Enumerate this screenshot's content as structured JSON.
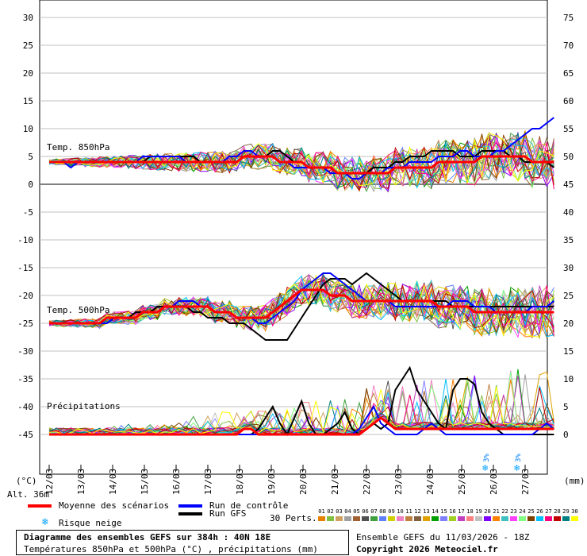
{
  "chart_data": {
    "type": "line",
    "x": [
      "12/03",
      "13/03",
      "14/03",
      "15/03",
      "16/03",
      "17/03",
      "18/03",
      "19/03",
      "20/03",
      "21/03",
      "22/03",
      "23/03",
      "24/03",
      "25/03",
      "26/03",
      "27/03"
    ],
    "left_axis": {
      "label": "(°C)",
      "ticks": [
        30,
        25,
        20,
        15,
        10,
        5,
        0,
        -5,
        -10,
        -15,
        -20,
        -25,
        -30,
        -35,
        -40,
        -45
      ],
      "ylim": [
        -45,
        30
      ]
    },
    "right_axis": {
      "label": "(mm)",
      "ticks": [
        75,
        70,
        65,
        60,
        55,
        50,
        45,
        40,
        35,
        30,
        25,
        20,
        15,
        10,
        5,
        0
      ],
      "ylim": [
        0,
        75
      ]
    },
    "panels": [
      "Temp. 850hPa",
      "Temp. 500hPa",
      "Précipitations"
    ],
    "altitude_label": "Alt. 36m",
    "snow_risk_marks": [
      {
        "date": "26/03",
        "label": "3%"
      },
      {
        "date": "27/03",
        "label": "3%"
      }
    ],
    "series": [
      {
        "name": "Moyenne des scénarios",
        "color": "#ff0000",
        "t850": [
          4,
          4,
          4,
          4,
          4,
          4,
          4,
          4,
          4,
          4,
          4,
          4,
          4,
          4,
          4,
          4,
          4,
          4,
          4,
          4,
          4,
          4,
          4,
          4,
          4,
          4,
          4,
          5,
          5,
          5,
          5,
          5,
          4,
          4,
          4,
          4,
          3,
          3,
          3,
          3,
          2,
          2,
          2,
          2,
          2,
          2,
          2,
          2,
          3,
          3,
          3,
          3,
          3,
          3,
          4,
          4,
          4,
          4,
          4,
          4,
          5,
          5,
          5,
          5,
          5,
          5,
          5,
          4,
          4,
          4,
          4
        ],
        "t500": [
          -25,
          -25,
          -25,
          -25,
          -25,
          -25,
          -25,
          -25,
          -24,
          -24,
          -24,
          -24,
          -24,
          -23,
          -23,
          -23,
          -22,
          -22,
          -22,
          -22,
          -22,
          -22,
          -22,
          -23,
          -23,
          -23,
          -24,
          -24,
          -24,
          -24,
          -24,
          -23,
          -22,
          -21,
          -20,
          -19,
          -19,
          -19,
          -19,
          -20,
          -20,
          -20,
          -21,
          -21,
          -21,
          -21,
          -21,
          -21,
          -21,
          -21,
          -21,
          -21,
          -21,
          -21,
          -22,
          -22,
          -22,
          -22,
          -22,
          -23,
          -23,
          -23,
          -23,
          -23,
          -23,
          -23,
          -23,
          -23,
          -23,
          -23,
          -23
        ],
        "precip": [
          0,
          0,
          0,
          0,
          0,
          0,
          0,
          0,
          0,
          0,
          0,
          0,
          0,
          0,
          0,
          0,
          0,
          0,
          0,
          0,
          0,
          0,
          0,
          0,
          0,
          0,
          0,
          1,
          1,
          0,
          0,
          0,
          0,
          0,
          0,
          0,
          0,
          0,
          0,
          0,
          0,
          0,
          0,
          0,
          1,
          2,
          3,
          2,
          1,
          1,
          1,
          1,
          1,
          1,
          1,
          1,
          1,
          1,
          1,
          1,
          1,
          1,
          1,
          1,
          1,
          1,
          1,
          1,
          1,
          1,
          1
        ]
      },
      {
        "name": "Run de contrôle",
        "color": "#0000ff",
        "t850": [
          4,
          4,
          4,
          3,
          4,
          4,
          4,
          4,
          4,
          4,
          4,
          4,
          4,
          5,
          5,
          5,
          5,
          5,
          5,
          4,
          4,
          4,
          4,
          4,
          4,
          5,
          5,
          6,
          6,
          5,
          5,
          5,
          4,
          4,
          3,
          3,
          3,
          3,
          3,
          2,
          2,
          2,
          1,
          1,
          2,
          2,
          2,
          3,
          3,
          3,
          4,
          4,
          4,
          4,
          5,
          5,
          5,
          6,
          6,
          5,
          5,
          5,
          6,
          6,
          7,
          8,
          9,
          10,
          10,
          11,
          12
        ],
        "t500": [
          -25,
          -25,
          -25,
          -25,
          -25,
          -25,
          -25,
          -25,
          -25,
          -24,
          -24,
          -24,
          -24,
          -23,
          -23,
          -23,
          -22,
          -22,
          -21,
          -21,
          -21,
          -22,
          -22,
          -23,
          -23,
          -23,
          -24,
          -24,
          -24,
          -25,
          -25,
          -24,
          -23,
          -22,
          -21,
          -19,
          -18,
          -17,
          -16,
          -16,
          -17,
          -18,
          -19,
          -20,
          -21,
          -21,
          -21,
          -21,
          -22,
          -22,
          -22,
          -22,
          -22,
          -22,
          -22,
          -22,
          -21,
          -21,
          -21,
          -22,
          -22,
          -22,
          -23,
          -23,
          -23,
          -23,
          -23,
          -22,
          -22,
          -22,
          -21
        ],
        "precip": [
          0,
          0,
          0,
          0,
          0,
          0,
          0,
          0,
          0,
          0,
          0,
          0,
          0,
          0,
          0,
          0,
          0,
          0,
          0,
          0,
          0,
          0,
          0,
          0,
          0,
          0,
          0,
          0,
          0,
          0,
          0,
          0,
          0,
          0,
          0,
          0,
          0,
          0,
          0,
          0,
          0,
          0,
          0,
          1,
          3,
          5,
          2,
          1,
          0,
          0,
          0,
          0,
          1,
          2,
          1,
          0,
          0,
          0,
          0,
          0,
          0,
          0,
          0,
          0,
          0,
          0,
          0,
          0,
          1,
          2,
          1
        ]
      },
      {
        "name": "Run GFS",
        "color": "#000000",
        "t850": [
          4,
          4,
          4,
          4,
          4,
          4,
          4,
          4,
          4,
          4,
          4,
          4,
          4,
          4,
          5,
          5,
          5,
          5,
          5,
          5,
          5,
          4,
          4,
          4,
          4,
          4,
          4,
          5,
          5,
          5,
          5,
          6,
          6,
          5,
          4,
          4,
          3,
          3,
          3,
          2,
          2,
          2,
          2,
          2,
          2,
          3,
          3,
          3,
          4,
          4,
          5,
          5,
          5,
          6,
          6,
          6,
          6,
          5,
          5,
          5,
          6,
          6,
          6,
          6,
          5,
          5,
          4,
          4,
          4,
          4,
          3
        ],
        "t500": [
          -25,
          -25,
          -25,
          -25,
          -25,
          -25,
          -25,
          -25,
          -25,
          -24,
          -24,
          -24,
          -23,
          -23,
          -23,
          -22,
          -22,
          -22,
          -22,
          -22,
          -23,
          -23,
          -24,
          -24,
          -24,
          -25,
          -25,
          -25,
          -26,
          -27,
          -28,
          -28,
          -28,
          -28,
          -26,
          -24,
          -22,
          -20,
          -18,
          -17,
          -17,
          -17,
          -18,
          -17,
          -16,
          -17,
          -18,
          -19,
          -20,
          -21,
          -21,
          -21,
          -21,
          -21,
          -21,
          -21,
          -22,
          -22,
          -22,
          -22,
          -22,
          -22,
          -22,
          -22,
          -22,
          -22,
          -22,
          -22,
          -22,
          -22,
          -22
        ],
        "precip": [
          0,
          0,
          0,
          0,
          0,
          0,
          0,
          0,
          0,
          0,
          0,
          0,
          0,
          0,
          0,
          0,
          0,
          0,
          0,
          0,
          0,
          0,
          0,
          0,
          0,
          0,
          0,
          0,
          0,
          1,
          3,
          5,
          2,
          0,
          3,
          6,
          2,
          0,
          0,
          1,
          2,
          4,
          1,
          0,
          1,
          2,
          1,
          2,
          8,
          10,
          12,
          8,
          6,
          4,
          2,
          1,
          8,
          10,
          10,
          9,
          4,
          2,
          1,
          0,
          0,
          0,
          0,
          0,
          0,
          0,
          0
        ]
      }
    ],
    "perturbations": {
      "label": "30 Perts.",
      "codes": [
        "01",
        "02",
        "03",
        "04",
        "05",
        "06",
        "07",
        "08",
        "09",
        "10",
        "11",
        "12",
        "13",
        "14",
        "15",
        "16",
        "17",
        "18",
        "19",
        "20",
        "21",
        "22",
        "23",
        "24",
        "25",
        "26",
        "27",
        "28",
        "29",
        "30"
      ],
      "colors": [
        "#e88000",
        "#80c040",
        "#d0a060",
        "#a0a0a0",
        "#a06030",
        "#505050",
        "#40a040",
        "#6080ff",
        "#d0d000",
        "#f080c0",
        "#c08040",
        "#806040",
        "#e0a000",
        "#00a000",
        "#8080ff",
        "#a0d020",
        "#c040c0",
        "#ff8080",
        "#c0c0c0",
        "#8000ff",
        "#ff8000",
        "#40c0c0",
        "#ff40ff",
        "#80ff80",
        "#804000",
        "#00c0ff",
        "#ff0080",
        "#c00000",
        "#008080",
        "#ffff00"
      ]
    }
  },
  "legend": {
    "mean_label": "Moyenne des scénarios",
    "control_label": "Run de contrôle",
    "gfs_label": "Run GFS",
    "snow_label": "Risque neige"
  },
  "footer": {
    "title": "Diagramme des ensembles GEFS sur 384h : 40N 18E",
    "subtitle": "Températures 850hPa et 500hPa (°C) , précipitations (mm)",
    "run_info": "Ensemble GEFS du 11/03/2026 - 18Z",
    "copyright": "Copyright 2026 Meteociel.fr"
  },
  "colors": {
    "mean": "#ff0000",
    "control": "#0000ff",
    "gfs": "#000000",
    "grid": "#c0c0c0",
    "zero_line": "#808080"
  }
}
